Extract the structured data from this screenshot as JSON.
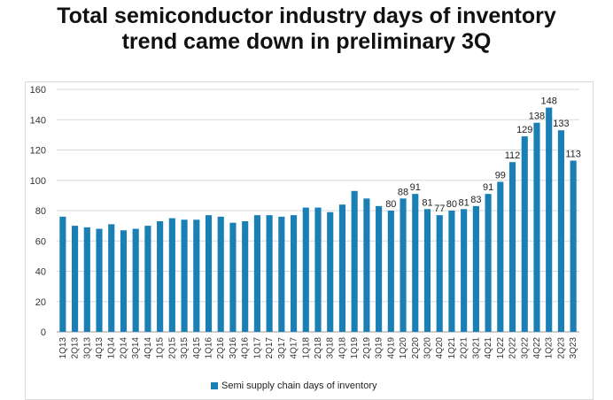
{
  "chart_data": {
    "type": "bar",
    "title_line1": "Total semiconductor industry days of inventory",
    "title_line2": "trend came down in preliminary 3Q",
    "xlabel": "",
    "ylabel": "",
    "ylim": [
      0,
      160
    ],
    "yticks": [
      0,
      20,
      40,
      60,
      80,
      100,
      120,
      140,
      160
    ],
    "grid": true,
    "legend_position": "bottom",
    "bar_color": "#1a7fb5",
    "categories": [
      "1Q13",
      "2Q13",
      "3Q13",
      "4Q13",
      "1Q14",
      "2Q14",
      "3Q14",
      "4Q14",
      "1Q15",
      "2Q15",
      "3Q15",
      "4Q15",
      "1Q16",
      "2Q16",
      "3Q16",
      "4Q16",
      "1Q17",
      "2Q17",
      "3Q17",
      "4Q17",
      "1Q18",
      "2Q18",
      "3Q18",
      "4Q18",
      "1Q19",
      "2Q19",
      "3Q19",
      "4Q19",
      "1Q20",
      "2Q20",
      "3Q20",
      "4Q20",
      "1Q21",
      "2Q21",
      "3Q21",
      "4Q21",
      "1Q22",
      "2Q22",
      "3Q22",
      "4Q22",
      "1Q23",
      "2Q23",
      "3Q23"
    ],
    "series": [
      {
        "name": "Semi supply chain days of inventory",
        "values": [
          76,
          70,
          69,
          68,
          71,
          67,
          68,
          70,
          73,
          75,
          74,
          74,
          77,
          76,
          72,
          73,
          77,
          77,
          76,
          77,
          82,
          82,
          79,
          84,
          93,
          88,
          83,
          80,
          88,
          91,
          81,
          77,
          80,
          81,
          83,
          91,
          99,
          112,
          129,
          138,
          148,
          133,
          113
        ],
        "labels": [
          "",
          "",
          "",
          "",
          "",
          "",
          "",
          "",
          "",
          "",
          "",
          "",
          "",
          "",
          "",
          "",
          "",
          "",
          "",
          "",
          "",
          "",
          "",
          "",
          "",
          "",
          "",
          "80",
          "88",
          "91",
          "81",
          "77",
          "80",
          "81",
          "83",
          "91",
          "99",
          "112",
          "129",
          "138",
          "148",
          "133",
          "113"
        ]
      }
    ]
  }
}
